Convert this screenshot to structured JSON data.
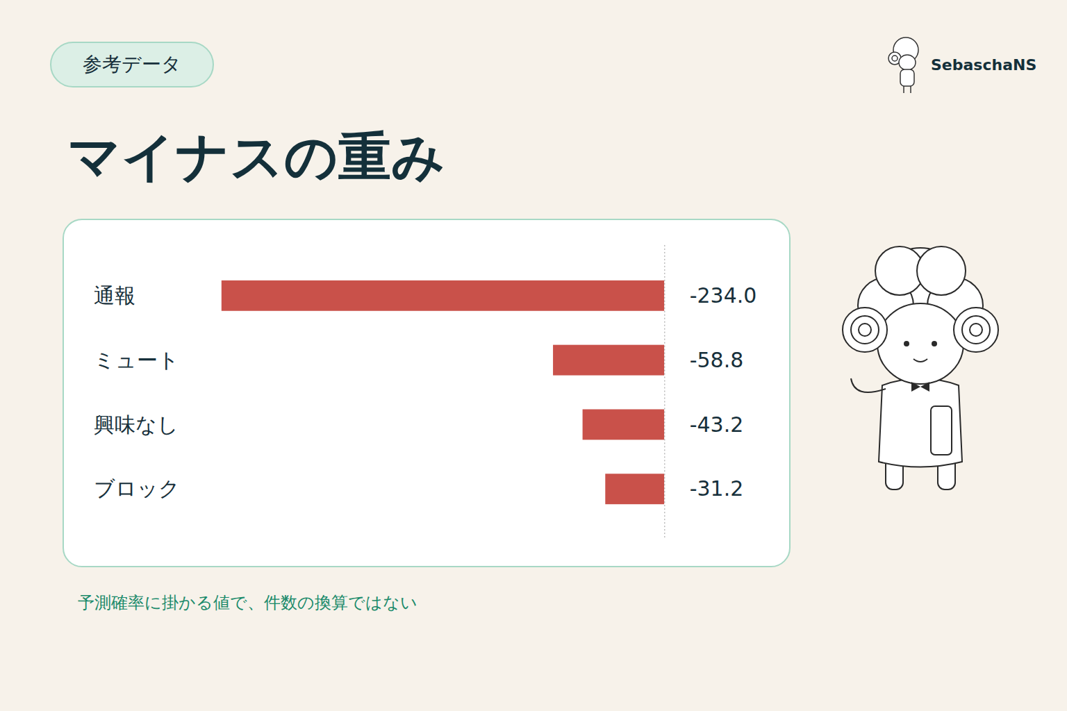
{
  "page": {
    "badge": "参考データ",
    "logo": "SebaschaNS"
  },
  "chart_data": {
    "type": "bar",
    "title": "マイナスの重み",
    "orientation": "horizontal",
    "categories": [
      "通報",
      "ミュート",
      "興味なし",
      "ブロック"
    ],
    "values": [
      -234.0,
      -58.8,
      -43.2,
      -31.2
    ],
    "value_labels": [
      "-234.0",
      "-58.8",
      "-43.2",
      "-31.2"
    ],
    "color": "#c9514a",
    "xlim": [
      -234,
      0
    ],
    "data_labels": true,
    "tick_labels": "y",
    "caption": "予測確率に掛かる値で、件数の換算ではない"
  }
}
